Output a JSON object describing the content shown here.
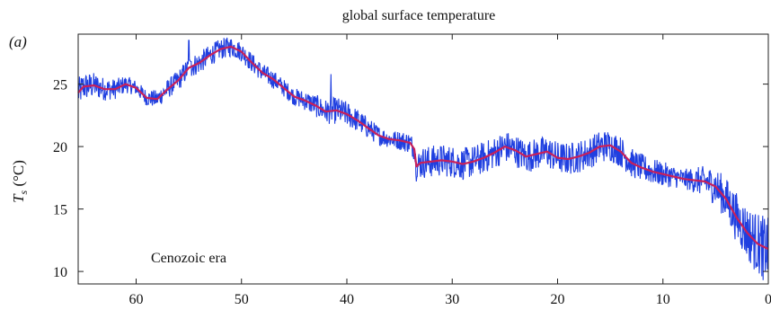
{
  "chart_data": {
    "type": "line",
    "panel_label": "(a)",
    "title": "global surface temperature",
    "annotation": "Cenozoic era",
    "ylabel": {
      "symbol": "T",
      "subscript": "s",
      "unit": " (°C)"
    },
    "xlabel": "",
    "xlim": [
      65.5,
      0
    ],
    "ylim": [
      9,
      29
    ],
    "x_ticks": [
      60,
      50,
      40,
      30,
      20,
      10,
      0
    ],
    "y_ticks": [
      10,
      15,
      20,
      25
    ],
    "grid": false,
    "colors": {
      "raw": "#1f3fe0",
      "smooth": "#c8205a"
    },
    "series": [
      {
        "role": "raw",
        "noise_amplitude": [
          [
            65.5,
            1.2
          ],
          [
            60,
            0.6
          ],
          [
            55,
            0.9
          ],
          [
            50,
            0.8
          ],
          [
            45,
            0.7
          ],
          [
            41,
            1.1
          ],
          [
            36,
            0.7
          ],
          [
            33.5,
            0.9
          ],
          [
            33,
            1.3
          ],
          [
            25,
            1.3
          ],
          [
            15,
            1.3
          ],
          [
            10,
            1.0
          ],
          [
            8,
            0.8
          ],
          [
            5,
            1.5
          ],
          [
            3,
            2.0
          ],
          [
            1,
            2.5
          ],
          [
            0,
            2.5
          ]
        ],
        "spikes": [
          [
            55,
            28.5
          ],
          [
            54.8,
            26.8
          ],
          [
            41.5,
            25.8
          ],
          [
            33.4,
            17.2
          ],
          [
            0.5,
            9.3
          ]
        ]
      },
      {
        "role": "smooth",
        "x": [
          65.5,
          65,
          64,
          63,
          62,
          61,
          60,
          59,
          58,
          57,
          56,
          55,
          54,
          53,
          52,
          51,
          50,
          49,
          48,
          47,
          46,
          45,
          44,
          43,
          42,
          41,
          40,
          39,
          38,
          37,
          36,
          35,
          34,
          33.6,
          33.4,
          33,
          32,
          31,
          30,
          29,
          28,
          27,
          26,
          25,
          24,
          23,
          22,
          21,
          20,
          19,
          18,
          17,
          16,
          15,
          14,
          13,
          12,
          11,
          10,
          9,
          8,
          7,
          6,
          5,
          4,
          3,
          2,
          1,
          0
        ],
        "y": [
          24.3,
          24.8,
          24.9,
          24.6,
          24.6,
          25.0,
          24.7,
          23.9,
          23.8,
          24.6,
          25.3,
          26.3,
          26.7,
          27.3,
          27.8,
          28.0,
          27.6,
          26.7,
          25.9,
          25.4,
          24.7,
          24.0,
          23.7,
          23.3,
          22.8,
          22.9,
          22.6,
          22.1,
          21.5,
          20.9,
          20.6,
          20.5,
          20.3,
          19.8,
          18.4,
          18.7,
          18.8,
          18.9,
          18.8,
          18.6,
          18.8,
          19.1,
          19.5,
          20.0,
          19.7,
          19.2,
          19.4,
          19.6,
          19.1,
          19.0,
          19.2,
          19.5,
          20.0,
          20.1,
          19.6,
          18.7,
          18.3,
          18.0,
          17.8,
          17.6,
          17.4,
          17.3,
          17.2,
          16.8,
          15.8,
          14.3,
          13.1,
          12.2,
          11.8
        ]
      }
    ]
  }
}
